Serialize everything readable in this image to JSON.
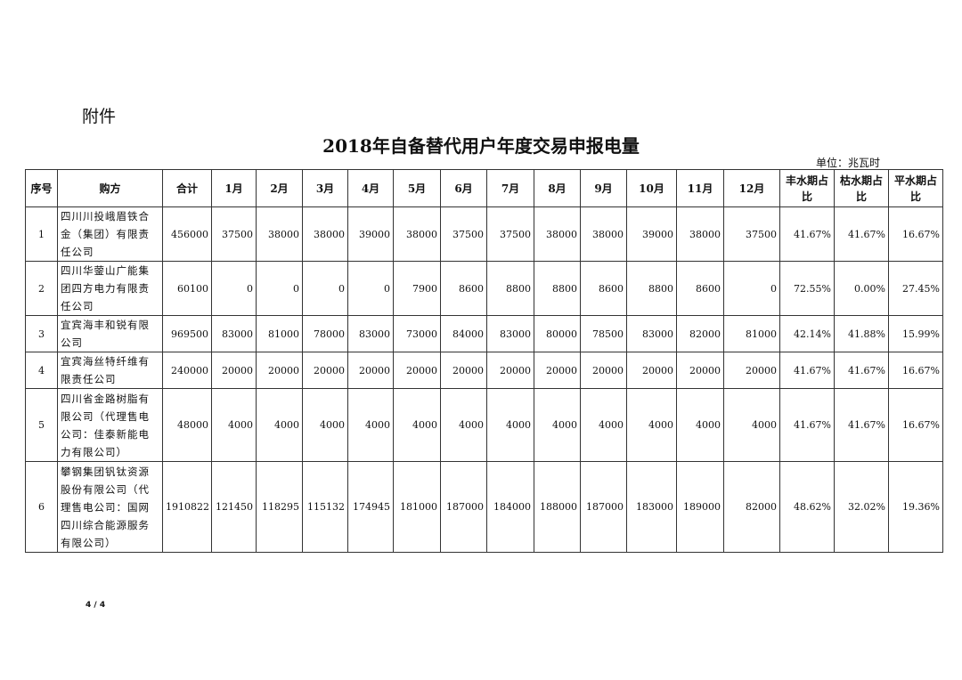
{
  "attachment_label": "附件",
  "title": "2018年自备替代用户年度交易申报电量",
  "unit": "单位：兆瓦时",
  "page_number": "4 / 4",
  "headers": [
    "序号",
    "购方",
    "合计",
    "1月",
    "2月",
    "3月",
    "4月",
    "5月",
    "6月",
    "7月",
    "8月",
    "9月",
    "10月",
    "11月",
    "12月",
    "丰水期占比",
    "枯水期占比",
    "平水期占比"
  ],
  "rows": [
    [
      "1",
      "四川川投峨眉铁合金（集团）有限责任公司",
      "456000",
      "37500",
      "38000",
      "38000",
      "39000",
      "38000",
      "37500",
      "37500",
      "38000",
      "38000",
      "39000",
      "38000",
      "37500",
      "41.67%",
      "41.67%",
      "16.67%"
    ],
    [
      "2",
      "四川华蓥山广能集团四方电力有限责任公司",
      "60100",
      "0",
      "0",
      "0",
      "0",
      "7900",
      "8600",
      "8800",
      "8800",
      "8600",
      "8800",
      "8600",
      "0",
      "72.55%",
      "0.00%",
      "27.45%"
    ],
    [
      "3",
      "宜宾海丰和锐有限公司",
      "969500",
      "83000",
      "81000",
      "78000",
      "83000",
      "73000",
      "84000",
      "83000",
      "80000",
      "78500",
      "83000",
      "82000",
      "81000",
      "42.14%",
      "41.88%",
      "15.99%"
    ],
    [
      "4",
      "宜宾海丝特纤维有限责任公司",
      "240000",
      "20000",
      "20000",
      "20000",
      "20000",
      "20000",
      "20000",
      "20000",
      "20000",
      "20000",
      "20000",
      "20000",
      "20000",
      "41.67%",
      "41.67%",
      "16.67%"
    ],
    [
      "5",
      "四川省金路树脂有限公司（代理售电公司：佳泰新能电力有限公司）",
      "48000",
      "4000",
      "4000",
      "4000",
      "4000",
      "4000",
      "4000",
      "4000",
      "4000",
      "4000",
      "4000",
      "4000",
      "4000",
      "41.67%",
      "41.67%",
      "16.67%"
    ],
    [
      "6",
      "攀钢集团钒钛资源股份有限公司（代理售电公司：国网四川综合能源服务有限公司）",
      "1910822",
      "121450",
      "118295",
      "115132",
      "174945",
      "181000",
      "187000",
      "184000",
      "188000",
      "187000",
      "183000",
      "189000",
      "82000",
      "48.62%",
      "32.02%",
      "19.36%"
    ]
  ]
}
